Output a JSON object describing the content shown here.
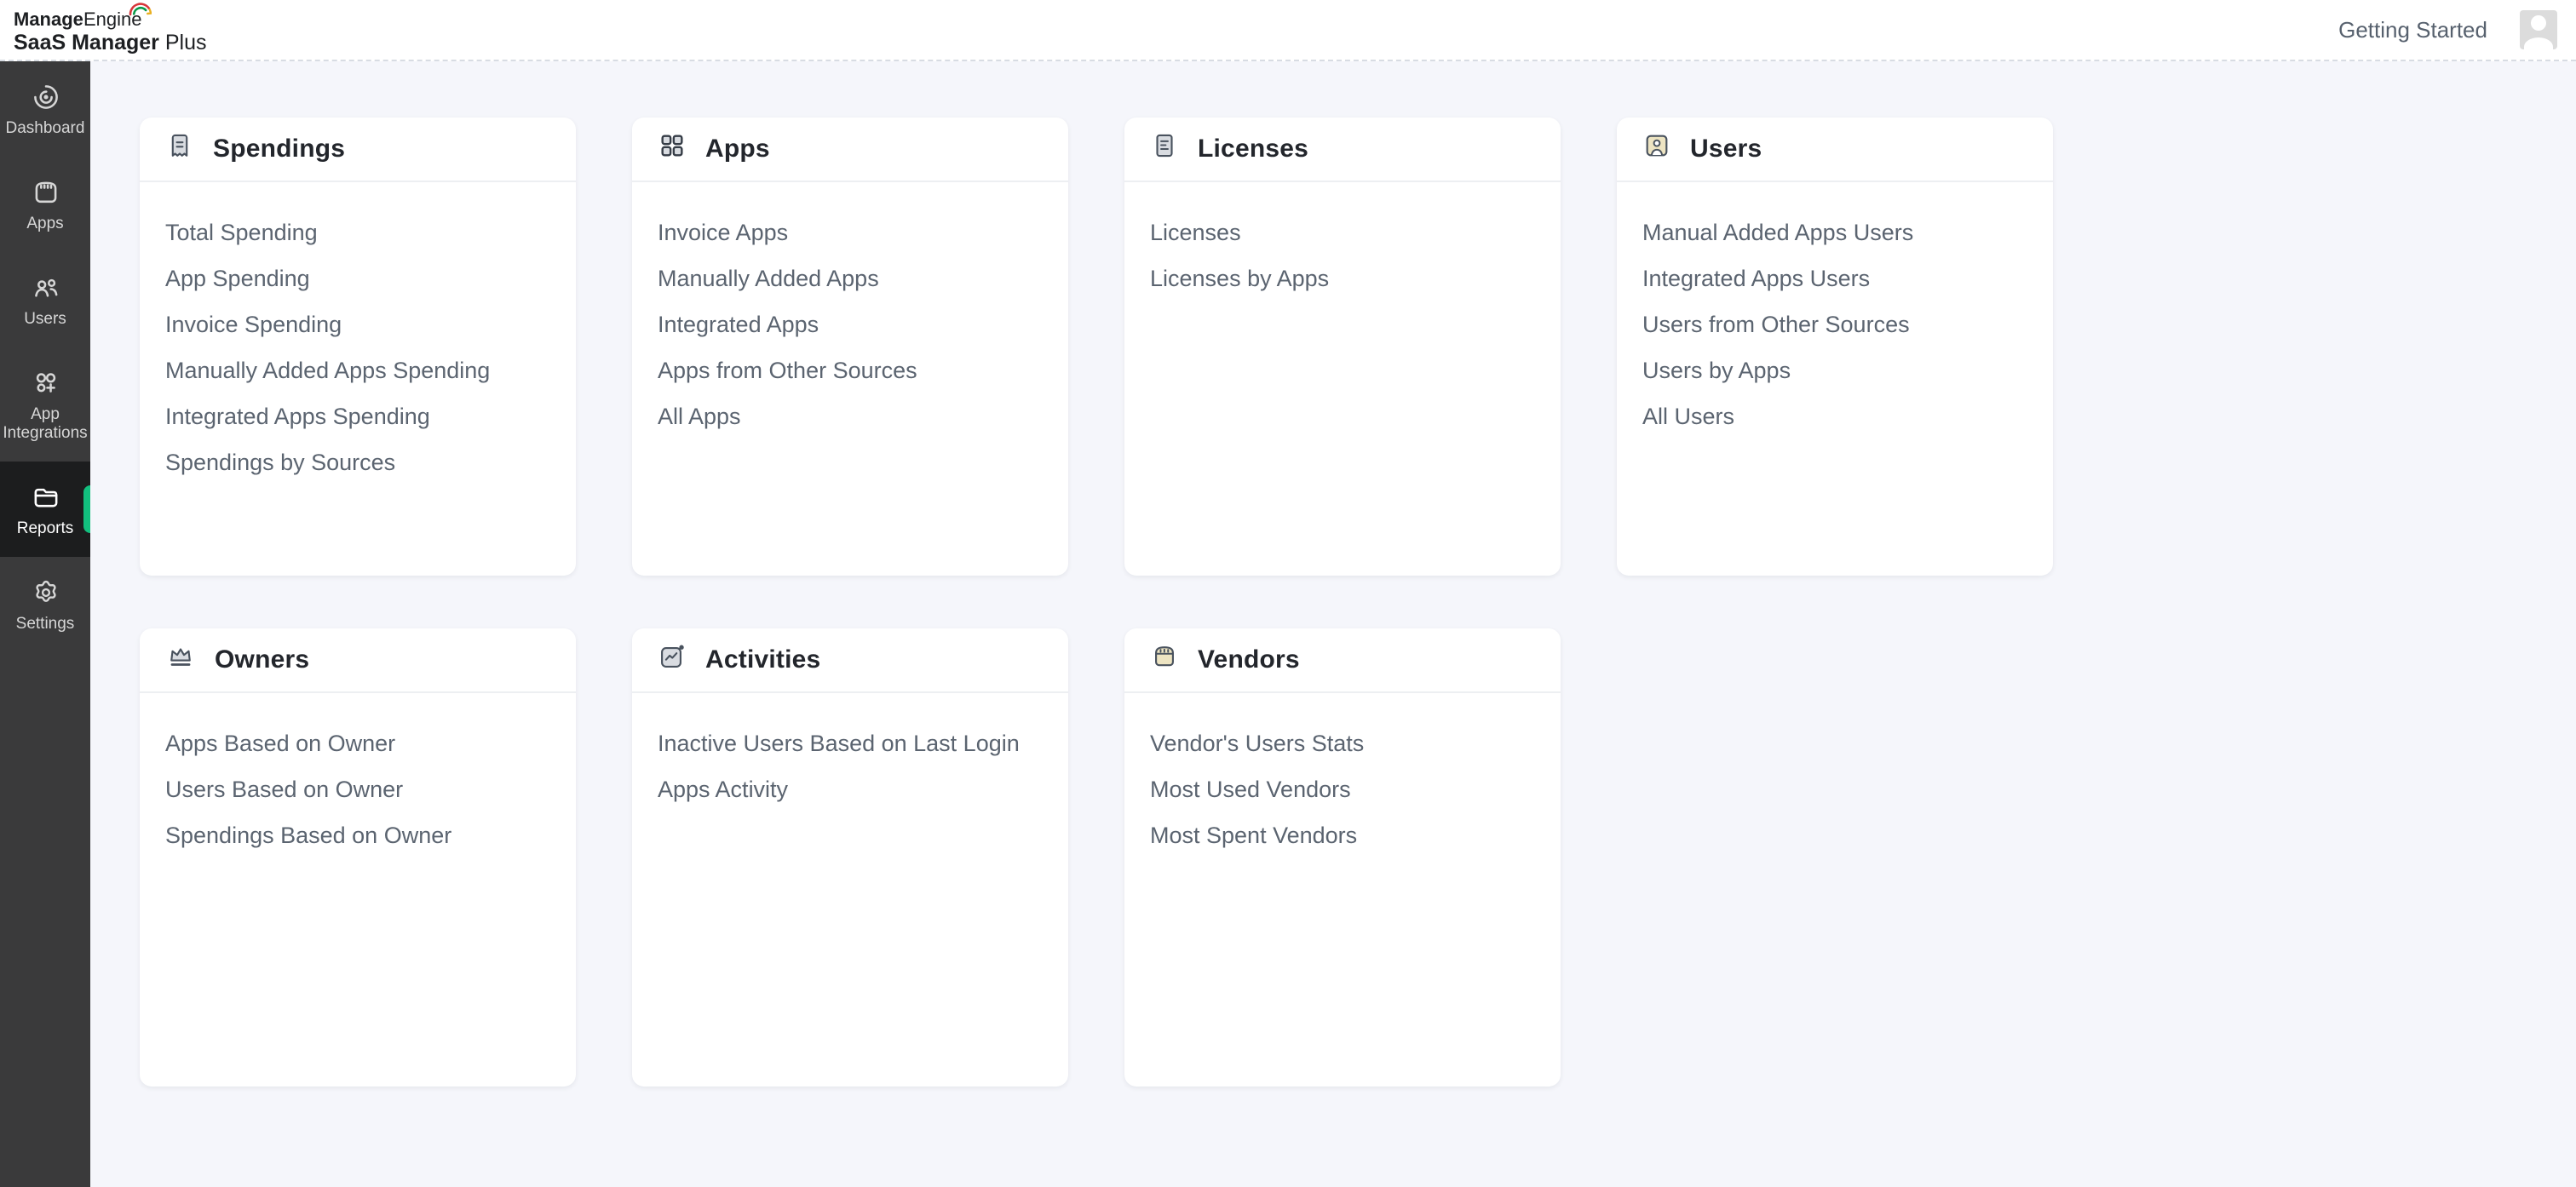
{
  "brand": {
    "name_bold": "Manage",
    "name_light": "Engine",
    "product_bold": "SaaS Manager",
    "product_light": " Plus"
  },
  "topbar": {
    "getting_started": "Getting Started"
  },
  "sidebar": {
    "items": [
      {
        "id": "dashboard",
        "label": "Dashboard",
        "icon": "dashboard-icon",
        "active": false
      },
      {
        "id": "apps",
        "label": "Apps",
        "icon": "apps-icon",
        "active": false
      },
      {
        "id": "users",
        "label": "Users",
        "icon": "users-icon",
        "active": false
      },
      {
        "id": "app-integrations",
        "label": "App Integrations",
        "icon": "app-integrations-icon",
        "active": false
      },
      {
        "id": "reports",
        "label": "Reports",
        "icon": "reports-folder-icon",
        "active": true
      },
      {
        "id": "settings",
        "label": "Settings",
        "icon": "settings-gear-icon",
        "active": false
      }
    ]
  },
  "report_groups": [
    {
      "title": "Spendings",
      "icon": "receipt-icon",
      "items": [
        "Total Spending",
        "App Spending",
        "Invoice Spending",
        "Manually Added Apps Spending",
        "Integrated Apps Spending",
        "Spendings by Sources"
      ]
    },
    {
      "title": "Apps",
      "icon": "grid-icon",
      "items": [
        "Invoice Apps",
        "Manually Added Apps",
        "Integrated Apps",
        "Apps from Other Sources",
        "All Apps"
      ]
    },
    {
      "title": "Licenses",
      "icon": "document-icon",
      "items": [
        "Licenses",
        "Licenses by Apps"
      ]
    },
    {
      "title": "Users",
      "icon": "user-card-icon",
      "items": [
        "Manual Added Apps Users",
        "Integrated Apps Users",
        "Users from Other Sources",
        "Users by Apps",
        "All Users"
      ]
    },
    {
      "title": "Owners",
      "icon": "crown-icon",
      "items": [
        "Apps Based on Owner",
        "Users Based on Owner",
        "Spendings Based on Owner"
      ]
    },
    {
      "title": "Activities",
      "icon": "activity-icon",
      "items": [
        "Inactive Users Based on Last Login",
        "Apps Activity"
      ]
    },
    {
      "title": "Vendors",
      "icon": "storefront-icon",
      "items": [
        "Vendor's Users Stats",
        "Most Used Vendors",
        "Most Spent Vendors"
      ]
    }
  ],
  "colors": {
    "accent_green": "#12bf7e",
    "sidebar_bg": "#3a3a3b",
    "sidebar_active_bg": "#1c1d1e",
    "content_bg": "#f5f6fb",
    "card_title": "#23262c",
    "link_text": "#5b6470"
  }
}
